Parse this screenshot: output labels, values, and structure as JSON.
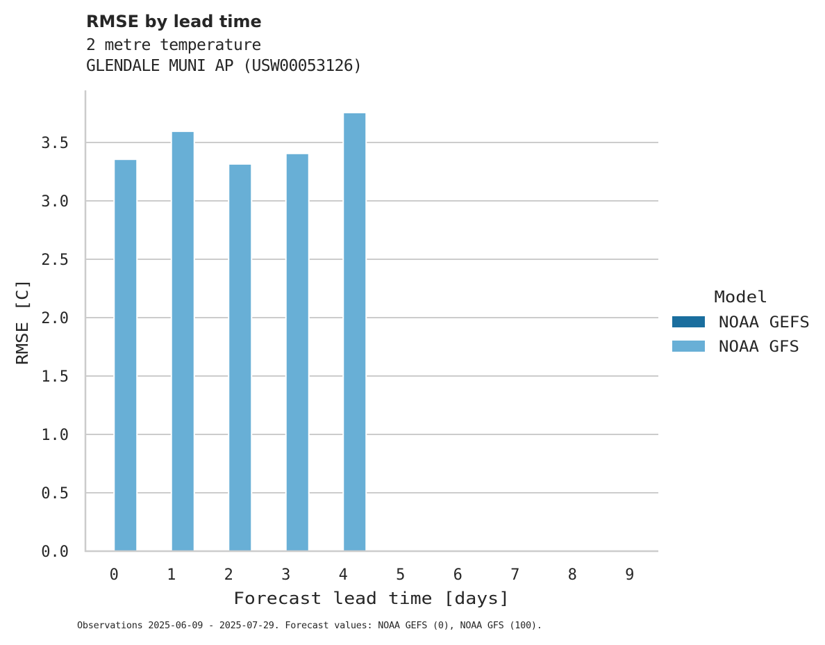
{
  "header": {
    "title": "RMSE by lead time",
    "subtitle_line1": "2 metre temperature",
    "subtitle_line2": "GLENDALE MUNI AP (USW00053126)"
  },
  "footnote": "Observations 2025-06-09 - 2025-07-29. Forecast values: NOAA GEFS (0), NOAA GFS (100).",
  "legend": {
    "title": "Model",
    "items": [
      {
        "label": "NOAA GEFS",
        "color": "#1a6e9e"
      },
      {
        "label": "NOAA GFS",
        "color": "#68afd6"
      }
    ]
  },
  "chart_data": {
    "type": "bar",
    "title": "RMSE by lead time",
    "subtitle": [
      "2 metre temperature",
      "GLENDALE MUNI AP (USW00053126)"
    ],
    "xlabel": "Forecast lead time [days]",
    "ylabel": "RMSE [C]",
    "categories": [
      "0",
      "1",
      "2",
      "3",
      "4",
      "5",
      "6",
      "7",
      "8",
      "9"
    ],
    "series": [
      {
        "name": "NOAA GEFS",
        "color": "#1a6e9e",
        "values": [
          null,
          null,
          null,
          null,
          null,
          null,
          null,
          null,
          null,
          null
        ]
      },
      {
        "name": "NOAA GFS",
        "color": "#68afd6",
        "values": [
          3.35,
          3.59,
          3.31,
          3.4,
          3.75,
          null,
          null,
          null,
          null,
          null
        ]
      }
    ],
    "ylim": [
      0,
      3.95
    ],
    "yticks": [
      "0.0",
      "0.5",
      "1.0",
      "1.5",
      "2.0",
      "2.5",
      "3.0",
      "3.5"
    ],
    "grid": "horizontal",
    "legend_position": "right",
    "legend_title": "Model"
  }
}
